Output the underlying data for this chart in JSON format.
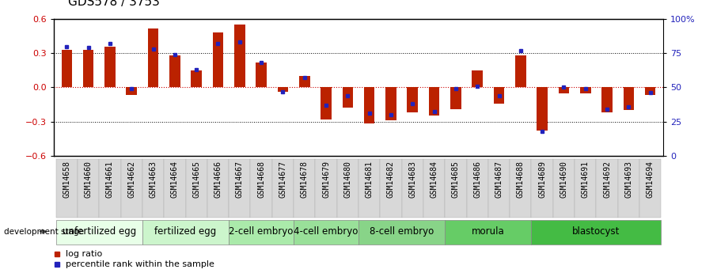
{
  "title": "GDS578 / 3753",
  "samples": [
    "GSM14658",
    "GSM14660",
    "GSM14661",
    "GSM14662",
    "GSM14663",
    "GSM14664",
    "GSM14665",
    "GSM14666",
    "GSM14667",
    "GSM14668",
    "GSM14677",
    "GSM14678",
    "GSM14679",
    "GSM14680",
    "GSM14681",
    "GSM14682",
    "GSM14683",
    "GSM14684",
    "GSM14685",
    "GSM14686",
    "GSM14687",
    "GSM14688",
    "GSM14689",
    "GSM14690",
    "GSM14691",
    "GSM14692",
    "GSM14693",
    "GSM14694"
  ],
  "log_ratio": [
    0.33,
    0.33,
    0.36,
    -0.07,
    0.52,
    0.28,
    0.15,
    0.48,
    0.55,
    0.22,
    -0.04,
    0.1,
    -0.28,
    -0.18,
    -0.32,
    -0.29,
    -0.22,
    -0.25,
    -0.19,
    0.15,
    -0.14,
    0.28,
    -0.38,
    -0.05,
    -0.05,
    -0.22,
    -0.2,
    -0.07
  ],
  "percentile_rank": [
    80,
    79,
    82,
    49,
    78,
    74,
    63,
    82,
    83,
    68,
    47,
    57,
    37,
    44,
    31,
    30,
    38,
    32,
    49,
    51,
    44,
    77,
    18,
    50,
    49,
    34,
    36,
    46
  ],
  "stages": [
    {
      "label": "unfertilized egg",
      "start": 0,
      "end": 3,
      "color": "#e8ffe8"
    },
    {
      "label": "fertilized egg",
      "start": 4,
      "end": 7,
      "color": "#ccf5cc"
    },
    {
      "label": "2-cell embryo",
      "start": 8,
      "end": 10,
      "color": "#aaeaaa"
    },
    {
      "label": "4-cell embryo",
      "start": 11,
      "end": 13,
      "color": "#99e099"
    },
    {
      "label": "8-cell embryo",
      "start": 14,
      "end": 17,
      "color": "#88d488"
    },
    {
      "label": "morula",
      "start": 18,
      "end": 21,
      "color": "#66cc66"
    },
    {
      "label": "blastocyst",
      "start": 22,
      "end": 27,
      "color": "#44bb44"
    }
  ],
  "bar_color": "#bb2200",
  "rank_color": "#2222bb",
  "ylim_left": [
    -0.6,
    0.6
  ],
  "ylim_right": [
    0,
    100
  ],
  "yticks_left": [
    -0.6,
    -0.3,
    0.0,
    0.3,
    0.6
  ],
  "yticks_right": [
    0,
    25,
    50,
    75,
    100
  ],
  "ytick_right_labels": [
    "0",
    "25",
    "50",
    "75",
    "100%"
  ],
  "hline_dotted": [
    -0.3,
    0.3
  ],
  "hline_zero_color": "#cc0000",
  "title_fontsize": 11,
  "tick_fontsize": 7,
  "stage_fontsize": 8.5,
  "legend_red": "log ratio",
  "legend_blue": "percentile rank within the sample",
  "dev_stage_label": "development stage",
  "xtick_bg": "#dddddd"
}
